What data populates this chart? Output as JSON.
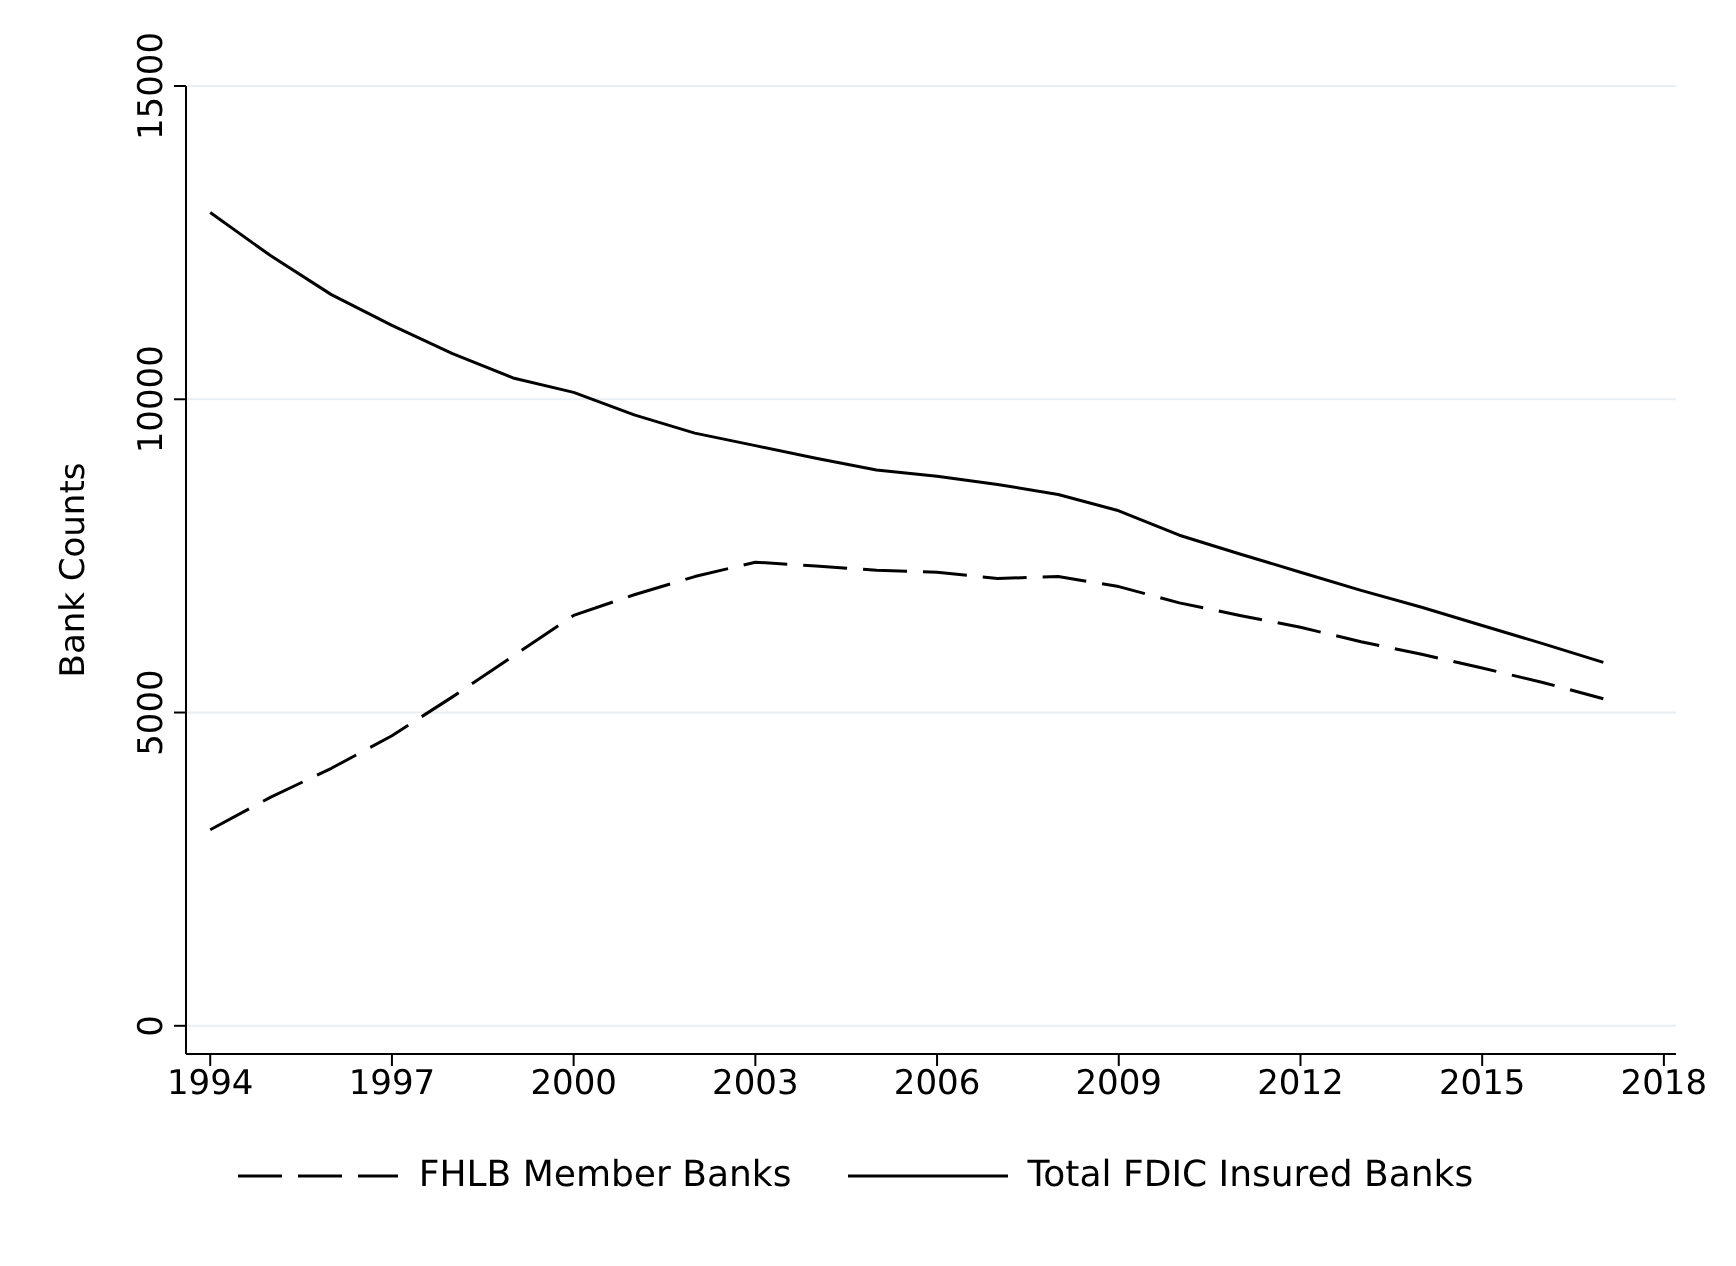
{
  "chart_data": {
    "type": "line",
    "ylabel": "Bank Counts",
    "x": [
      1994,
      1995,
      1996,
      1997,
      1998,
      1999,
      2000,
      2001,
      2002,
      2003,
      2004,
      2005,
      2006,
      2007,
      2008,
      2009,
      2010,
      2011,
      2012,
      2013,
      2014,
      2015,
      2016,
      2017
    ],
    "series": [
      {
        "name": "FHLB Member Banks",
        "color": "#000000",
        "line_style": "dashed",
        "values": [
          3130,
          3650,
          4110,
          4630,
          5250,
          5900,
          6550,
          6880,
          7170,
          7400,
          7340,
          7270,
          7240,
          7140,
          7170,
          7010,
          6750,
          6550,
          6360,
          6130,
          5930,
          5710,
          5480,
          5220
        ]
      },
      {
        "name": "Total FDIC Insured Banks",
        "color": "#000000",
        "line_style": "solid",
        "values": [
          12980,
          12290,
          11670,
          11180,
          10730,
          10340,
          10110,
          9750,
          9460,
          9260,
          9060,
          8870,
          8770,
          8640,
          8480,
          8220,
          7830,
          7530,
          7240,
          6950,
          6680,
          6390,
          6100,
          5800
        ]
      }
    ],
    "xlim": [
      1993.6,
      2018.2
    ],
    "xticks": [
      1994,
      1997,
      2000,
      2003,
      2006,
      2009,
      2012,
      2015,
      2018
    ],
    "ylim": [
      -450,
      15000
    ],
    "yticks": [
      0,
      5000,
      10000,
      15000
    ],
    "grid": "y",
    "legend": "bottom",
    "marker": "none"
  }
}
